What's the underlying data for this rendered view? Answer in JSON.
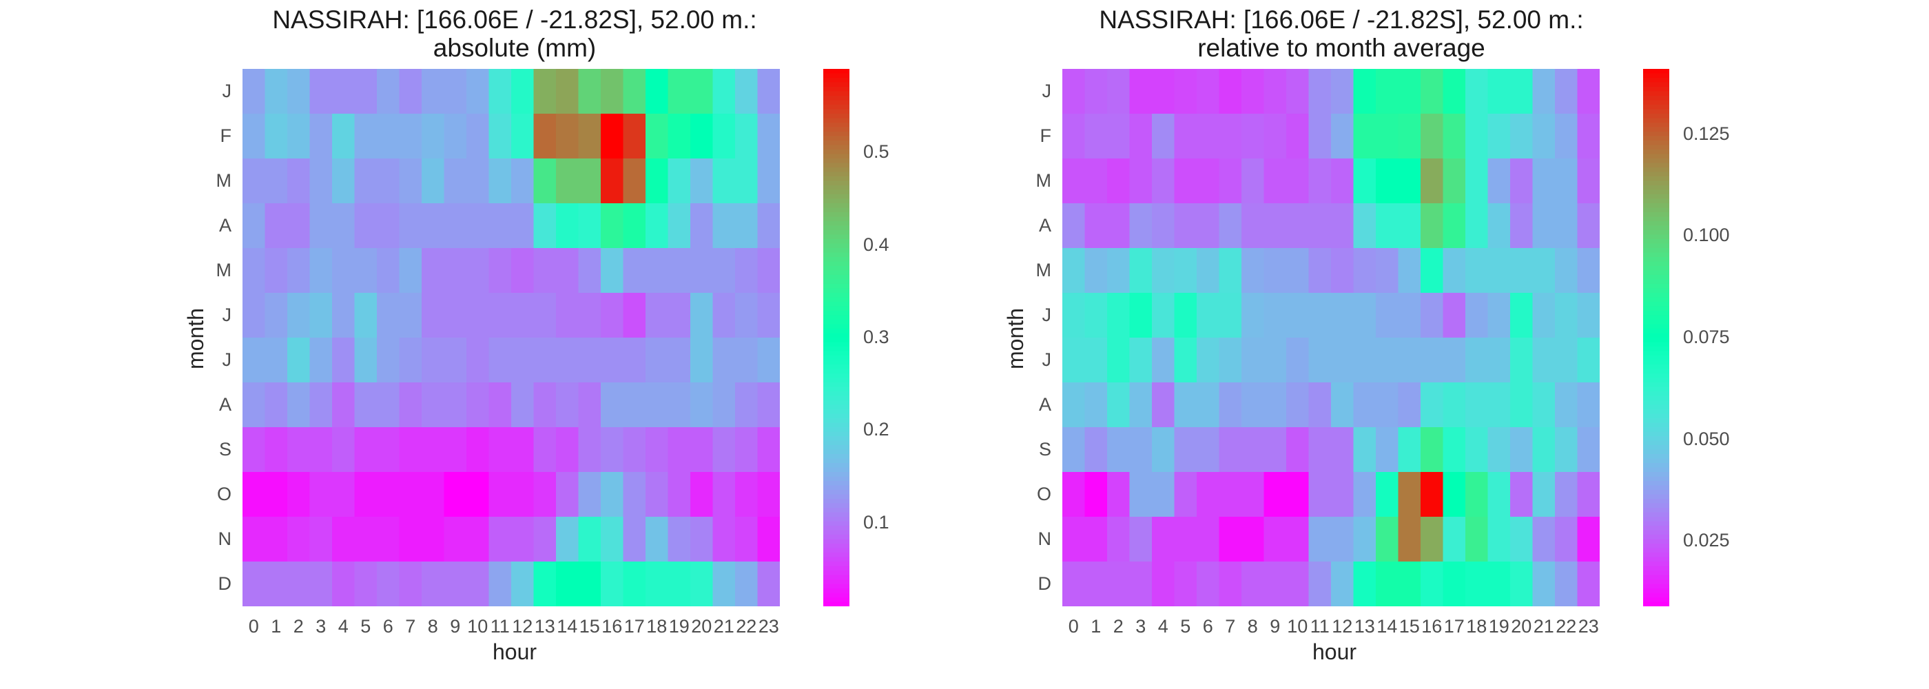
{
  "chart_data": [
    {
      "type": "heatmap",
      "title_line1": "NASSIRAH: [166.06E / -21.82S], 52.00 m.:",
      "title_line2": "absolute (mm)",
      "xlabel": "hour",
      "ylabel": "month",
      "x": [
        "0",
        "1",
        "2",
        "3",
        "4",
        "5",
        "6",
        "7",
        "8",
        "9",
        "10",
        "11",
        "12",
        "13",
        "14",
        "15",
        "16",
        "17",
        "18",
        "19",
        "20",
        "21",
        "22",
        "23"
      ],
      "y": [
        "J",
        "F",
        "M",
        "A",
        "M",
        "J",
        "J",
        "A",
        "S",
        "O",
        "N",
        "D"
      ],
      "colormap": "rainbow",
      "vmin": 0.01,
      "vmax": 0.59,
      "colorbar_ticks": [
        "0.1",
        "0.2",
        "0.3",
        "0.4",
        "0.5"
      ],
      "colorbar_tick_values": [
        0.1,
        0.2,
        0.3,
        0.4,
        0.5
      ],
      "values": [
        [
          0.14,
          0.17,
          0.16,
          0.12,
          0.12,
          0.12,
          0.14,
          0.12,
          0.14,
          0.14,
          0.15,
          0.22,
          0.26,
          0.45,
          0.46,
          0.41,
          0.43,
          0.39,
          0.3,
          0.36,
          0.36,
          0.24,
          0.19,
          0.13
        ],
        [
          0.15,
          0.18,
          0.17,
          0.14,
          0.19,
          0.15,
          0.15,
          0.15,
          0.16,
          0.15,
          0.14,
          0.21,
          0.25,
          0.51,
          0.5,
          0.49,
          0.59,
          0.55,
          0.35,
          0.32,
          0.3,
          0.26,
          0.23,
          0.15
        ],
        [
          0.13,
          0.13,
          0.12,
          0.14,
          0.17,
          0.13,
          0.13,
          0.14,
          0.17,
          0.14,
          0.14,
          0.17,
          0.15,
          0.38,
          0.42,
          0.42,
          0.57,
          0.51,
          0.31,
          0.22,
          0.17,
          0.23,
          0.23,
          0.15
        ],
        [
          0.14,
          0.11,
          0.11,
          0.14,
          0.14,
          0.12,
          0.12,
          0.13,
          0.13,
          0.13,
          0.13,
          0.13,
          0.13,
          0.22,
          0.26,
          0.25,
          0.35,
          0.33,
          0.25,
          0.2,
          0.13,
          0.17,
          0.17,
          0.13
        ],
        [
          0.13,
          0.12,
          0.13,
          0.15,
          0.14,
          0.14,
          0.13,
          0.15,
          0.11,
          0.11,
          0.11,
          0.1,
          0.09,
          0.1,
          0.1,
          0.12,
          0.18,
          0.13,
          0.13,
          0.13,
          0.13,
          0.13,
          0.12,
          0.11
        ],
        [
          0.13,
          0.14,
          0.16,
          0.17,
          0.14,
          0.18,
          0.14,
          0.14,
          0.11,
          0.11,
          0.11,
          0.11,
          0.11,
          0.11,
          0.1,
          0.1,
          0.09,
          0.07,
          0.11,
          0.11,
          0.17,
          0.12,
          0.13,
          0.12
        ],
        [
          0.15,
          0.15,
          0.19,
          0.15,
          0.12,
          0.17,
          0.14,
          0.13,
          0.12,
          0.12,
          0.11,
          0.12,
          0.12,
          0.12,
          0.12,
          0.12,
          0.12,
          0.12,
          0.13,
          0.13,
          0.17,
          0.14,
          0.14,
          0.15
        ],
        [
          0.13,
          0.12,
          0.14,
          0.12,
          0.09,
          0.12,
          0.12,
          0.1,
          0.11,
          0.11,
          0.1,
          0.09,
          0.12,
          0.1,
          0.11,
          0.1,
          0.14,
          0.14,
          0.14,
          0.14,
          0.15,
          0.14,
          0.12,
          0.11
        ],
        [
          0.07,
          0.06,
          0.07,
          0.07,
          0.08,
          0.06,
          0.06,
          0.05,
          0.05,
          0.05,
          0.04,
          0.05,
          0.05,
          0.08,
          0.07,
          0.1,
          0.11,
          0.1,
          0.09,
          0.08,
          0.08,
          0.1,
          0.09,
          0.07
        ],
        [
          0.02,
          0.02,
          0.03,
          0.05,
          0.05,
          0.03,
          0.03,
          0.03,
          0.03,
          0.01,
          0.01,
          0.04,
          0.04,
          0.05,
          0.09,
          0.14,
          0.17,
          0.12,
          0.1,
          0.08,
          0.04,
          0.07,
          0.05,
          0.04
        ],
        [
          0.04,
          0.04,
          0.05,
          0.06,
          0.04,
          0.04,
          0.04,
          0.03,
          0.03,
          0.04,
          0.04,
          0.08,
          0.08,
          0.09,
          0.18,
          0.25,
          0.21,
          0.12,
          0.17,
          0.12,
          0.11,
          0.07,
          0.06,
          0.03
        ],
        [
          0.1,
          0.1,
          0.1,
          0.1,
          0.08,
          0.09,
          0.1,
          0.09,
          0.1,
          0.1,
          0.1,
          0.14,
          0.18,
          0.28,
          0.3,
          0.3,
          0.25,
          0.27,
          0.26,
          0.26,
          0.25,
          0.17,
          0.15,
          0.1
        ]
      ]
    },
    {
      "type": "heatmap",
      "title_line1": "NASSIRAH: [166.06E / -21.82S], 52.00 m.:",
      "title_line2": "relative to month average",
      "xlabel": "hour",
      "ylabel": "month",
      "x": [
        "0",
        "1",
        "2",
        "3",
        "4",
        "5",
        "6",
        "7",
        "8",
        "9",
        "10",
        "11",
        "12",
        "13",
        "14",
        "15",
        "16",
        "17",
        "18",
        "19",
        "20",
        "21",
        "22",
        "23"
      ],
      "y": [
        "J",
        "F",
        "M",
        "A",
        "M",
        "J",
        "J",
        "A",
        "S",
        "O",
        "N",
        "D"
      ],
      "colormap": "rainbow",
      "vmin": 0.009,
      "vmax": 0.141,
      "colorbar_ticks": [
        "0.025",
        "0.050",
        "0.075",
        "0.100",
        "0.125"
      ],
      "colorbar_tick_values": [
        0.025,
        0.05,
        0.075,
        0.1,
        0.125
      ],
      "values": [
        [
          0.024,
          0.026,
          0.027,
          0.02,
          0.02,
          0.021,
          0.022,
          0.019,
          0.021,
          0.023,
          0.025,
          0.034,
          0.036,
          0.078,
          0.082,
          0.082,
          0.09,
          0.08,
          0.06,
          0.064,
          0.064,
          0.043,
          0.036,
          0.024
        ],
        [
          0.026,
          0.028,
          0.028,
          0.024,
          0.033,
          0.025,
          0.025,
          0.025,
          0.026,
          0.025,
          0.023,
          0.034,
          0.04,
          0.084,
          0.084,
          0.085,
          0.1,
          0.09,
          0.06,
          0.055,
          0.05,
          0.045,
          0.04,
          0.026
        ],
        [
          0.023,
          0.023,
          0.021,
          0.024,
          0.028,
          0.022,
          0.022,
          0.024,
          0.029,
          0.024,
          0.024,
          0.028,
          0.026,
          0.068,
          0.075,
          0.075,
          0.11,
          0.095,
          0.06,
          0.04,
          0.03,
          0.042,
          0.042,
          0.027
        ],
        [
          0.033,
          0.026,
          0.026,
          0.035,
          0.033,
          0.03,
          0.03,
          0.035,
          0.03,
          0.03,
          0.03,
          0.03,
          0.03,
          0.052,
          0.062,
          0.062,
          0.098,
          0.088,
          0.06,
          0.048,
          0.032,
          0.042,
          0.042,
          0.031
        ],
        [
          0.05,
          0.044,
          0.046,
          0.058,
          0.05,
          0.051,
          0.047,
          0.055,
          0.04,
          0.039,
          0.039,
          0.034,
          0.032,
          0.035,
          0.036,
          0.044,
          0.068,
          0.047,
          0.05,
          0.05,
          0.05,
          0.05,
          0.045,
          0.04
        ],
        [
          0.056,
          0.058,
          0.064,
          0.07,
          0.056,
          0.068,
          0.056,
          0.056,
          0.044,
          0.043,
          0.043,
          0.043,
          0.043,
          0.043,
          0.04,
          0.04,
          0.036,
          0.028,
          0.04,
          0.043,
          0.066,
          0.047,
          0.05,
          0.047
        ],
        [
          0.055,
          0.055,
          0.064,
          0.055,
          0.043,
          0.062,
          0.05,
          0.047,
          0.043,
          0.043,
          0.04,
          0.043,
          0.043,
          0.043,
          0.043,
          0.043,
          0.043,
          0.043,
          0.047,
          0.047,
          0.06,
          0.05,
          0.05,
          0.055
        ],
        [
          0.047,
          0.045,
          0.055,
          0.045,
          0.03,
          0.045,
          0.045,
          0.038,
          0.04,
          0.04,
          0.037,
          0.034,
          0.045,
          0.04,
          0.04,
          0.038,
          0.055,
          0.058,
          0.055,
          0.055,
          0.06,
          0.055,
          0.045,
          0.042
        ],
        [
          0.04,
          0.035,
          0.04,
          0.04,
          0.045,
          0.035,
          0.035,
          0.03,
          0.03,
          0.03,
          0.024,
          0.03,
          0.03,
          0.05,
          0.042,
          0.06,
          0.09,
          0.065,
          0.058,
          0.05,
          0.045,
          0.058,
          0.05,
          0.04
        ],
        [
          0.015,
          0.01,
          0.02,
          0.04,
          0.04,
          0.025,
          0.02,
          0.02,
          0.02,
          0.01,
          0.01,
          0.03,
          0.03,
          0.04,
          0.07,
          0.12,
          0.14,
          0.075,
          0.088,
          0.06,
          0.028,
          0.05,
          0.035,
          0.027
        ],
        [
          0.018,
          0.018,
          0.024,
          0.03,
          0.02,
          0.02,
          0.02,
          0.012,
          0.012,
          0.018,
          0.018,
          0.04,
          0.04,
          0.045,
          0.09,
          0.12,
          0.11,
          0.06,
          0.09,
          0.06,
          0.055,
          0.035,
          0.03,
          0.014
        ],
        [
          0.025,
          0.025,
          0.025,
          0.025,
          0.02,
          0.022,
          0.025,
          0.022,
          0.025,
          0.025,
          0.025,
          0.035,
          0.045,
          0.07,
          0.08,
          0.08,
          0.068,
          0.072,
          0.07,
          0.07,
          0.065,
          0.045,
          0.038,
          0.025
        ]
      ]
    }
  ]
}
